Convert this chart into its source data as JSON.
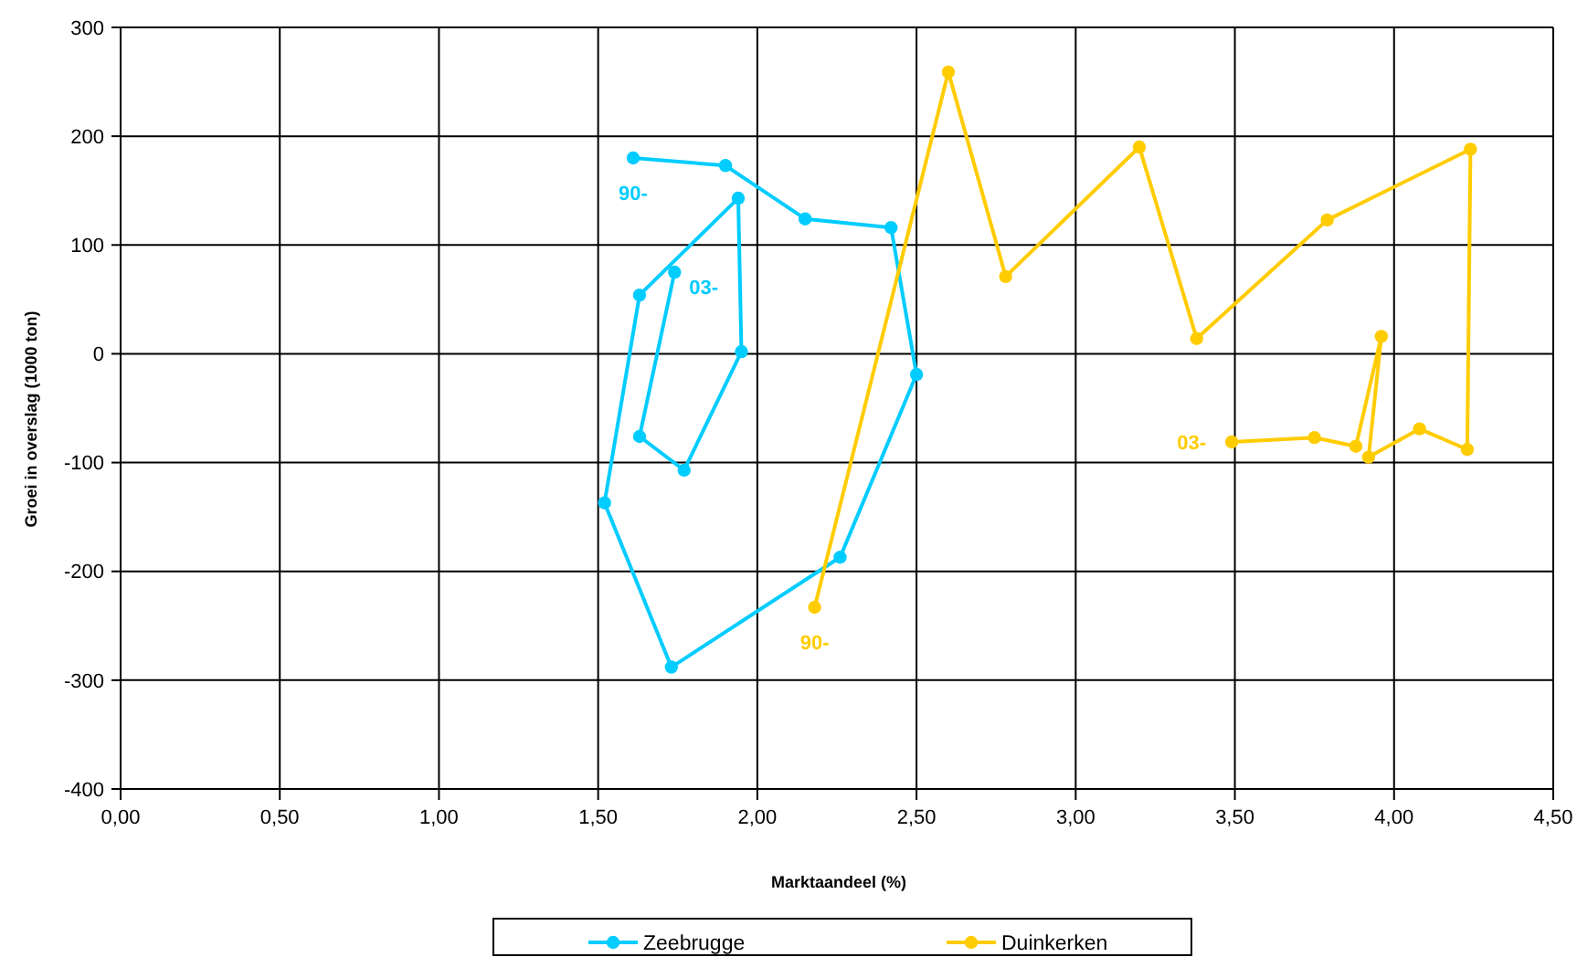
{
  "chart_data": {
    "type": "line",
    "xlabel": "Marktaandeel (%)",
    "ylabel": "Groei in overslag (1000 ton)",
    "series": [
      {
        "name": "Zeebrugge",
        "color": "#00ccff",
        "x": [
          1.61,
          1.9,
          2.15,
          2.42,
          2.5,
          2.26,
          1.73,
          1.52,
          1.63,
          1.94,
          1.95,
          1.77,
          1.63,
          1.74
        ],
        "values": [
          180,
          173,
          124,
          116,
          -19,
          -187,
          -288,
          -137,
          54,
          143,
          2,
          -107,
          -76,
          75
        ]
      },
      {
        "name": "Duinkerken",
        "color": "#ffcc00",
        "x": [
          2.18,
          2.6,
          2.78,
          3.2,
          3.38,
          3.79,
          4.24,
          4.23,
          4.08,
          3.92,
          3.96,
          3.88,
          3.75,
          3.49
        ],
        "values": [
          -233,
          259,
          71,
          190,
          14,
          123,
          188,
          -88,
          -69,
          -95,
          16,
          -85,
          -77,
          -81
        ]
      }
    ],
    "xlim": [
      0,
      4.5
    ],
    "xticks": [
      {
        "value": 0,
        "label": "0,00"
      },
      {
        "value": 0.5,
        "label": "0,50"
      },
      {
        "value": 1,
        "label": "1,00"
      },
      {
        "value": 1.5,
        "label": "1,50"
      },
      {
        "value": 2,
        "label": "2,00"
      },
      {
        "value": 2.5,
        "label": "2,50"
      },
      {
        "value": 3,
        "label": "3,00"
      },
      {
        "value": 3.5,
        "label": "3,50"
      },
      {
        "value": 4,
        "label": "4,00"
      },
      {
        "value": 4.5,
        "label": "4,50"
      }
    ],
    "ylim": [
      -400,
      300
    ],
    "yticks": [
      -400,
      -300,
      -200,
      -100,
      0,
      100,
      200,
      300
    ],
    "grid": true,
    "legend": "bottom",
    "marker": "circle",
    "line_style": "solid",
    "annotations": [
      {
        "text": "90-",
        "x": 1.61,
        "y": 180
      },
      {
        "text": "03-",
        "x": 1.74,
        "y": 75
      },
      {
        "text": "90-",
        "x": 2.18,
        "y": -233
      },
      {
        "text": "03-",
        "x": 3.49,
        "y": -81
      }
    ]
  }
}
